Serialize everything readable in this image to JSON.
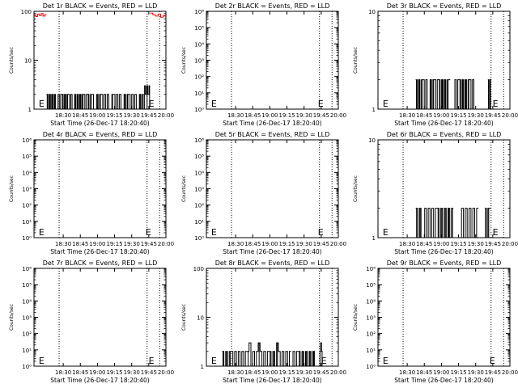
{
  "figure": {
    "type": "grid",
    "rows": 3,
    "cols": 3,
    "background": "#ffffff",
    "event_color": "#000000",
    "lld_color": "#ff0000"
  },
  "chart_data": [
    {
      "id": "p1",
      "type": "line",
      "title": "Det 1r BLACK = Events, RED = LLD",
      "xlabel": "Start Time (26-Dec-17 18:20:40)",
      "ylabel": "Counts/sec",
      "xticks": [
        "18:30",
        "18:45",
        "19:00",
        "19:15",
        "19:30",
        "19:45",
        "20:00"
      ],
      "xlim_minutes": [
        -2,
        40
      ],
      "yscale": "log",
      "ylim": [
        1,
        100
      ],
      "yticks": [
        "1",
        "10",
        "100"
      ],
      "vlines_minutes": [
        6,
        34,
        38
      ],
      "e_minutes": [
        -0.5,
        34.5
      ],
      "series": [
        {
          "name": "Events",
          "segments": [
            {
              "start_min": 2,
              "end_min": 15,
              "counts": [
                2,
                1,
                2,
                1,
                2,
                1,
                2,
                1,
                1,
                2,
                1,
                2,
                2,
                1,
                2,
                1,
                2,
                2,
                1,
                2,
                1,
                1,
                2,
                1,
                2,
                1,
                2,
                1,
                2,
                2,
                1,
                2
              ]
            },
            {
              "start_min": 15,
              "end_min": 33,
              "counts": [
                2,
                1,
                2,
                2,
                1,
                1,
                2,
                1,
                2,
                2,
                1,
                2,
                1,
                2,
                1,
                1,
                2,
                2,
                1,
                2,
                1,
                2,
                1,
                1,
                2,
                1,
                2,
                2,
                1,
                2,
                1,
                2,
                1,
                1,
                2,
                1,
                2
              ]
            },
            {
              "start_min": 33,
              "end_min": 35,
              "counts": [
                3,
                2,
                3,
                2,
                3
              ]
            }
          ]
        },
        {
          "name": "LLD",
          "segments": [
            {
              "start_min": -2,
              "end_min": 2,
              "counts": [
                85,
                78,
                88,
                82,
                90,
                80,
                86
              ]
            },
            {
              "start_min": 35,
              "end_min": 40,
              "counts": [
                92,
                85,
                80,
                88,
                76,
                82
              ]
            }
          ]
        }
      ]
    },
    {
      "id": "p2",
      "type": "line",
      "title": "Det 2r BLACK = Events, RED = LLD",
      "xlabel": "Start Time (26-Dec-17 18:20:40)",
      "ylabel": "Counts/sec",
      "xticks": [
        "18:30",
        "18:45",
        "19:00",
        "19:15",
        "19:30",
        "19:45",
        "20:00"
      ],
      "xlim_minutes": [
        -2,
        40
      ],
      "yscale": "log",
      "ylim": [
        1,
        1000000
      ],
      "yticks": [
        "10⁰",
        "10¹",
        "10²",
        "10³",
        "10⁴",
        "10⁵",
        "10⁶"
      ],
      "vlines_minutes": [
        6,
        34,
        38
      ],
      "e_minutes": [
        -0.5,
        33.5
      ],
      "series": []
    },
    {
      "id": "p3",
      "type": "line",
      "title": "Det 3r BLACK = Events, RED = LLD",
      "xlabel": "Start Time (26-Dec-17 18:20:40)",
      "ylabel": "Counts/sec",
      "xticks": [
        "18:30",
        "18:45",
        "19:00",
        "19:15",
        "19:30",
        "19:45",
        "20:00"
      ],
      "xlim_minutes": [
        -2,
        40
      ],
      "yscale": "log",
      "ylim": [
        1,
        10
      ],
      "yticks": [
        "1",
        "10"
      ],
      "vlines_minutes": [
        6,
        34,
        38
      ],
      "e_minutes": [
        -0.5,
        34.5
      ],
      "series": [
        {
          "name": "Events",
          "segments": [
            {
              "start_min": 10,
              "end_min": 21,
              "counts": [
                2,
                1,
                2,
                1,
                2,
                2,
                1,
                2,
                1,
                1,
                2,
                1,
                2,
                2,
                1,
                2,
                2,
                1,
                2,
                1,
                2,
                1,
                2,
                2
              ]
            },
            {
              "start_min": 22,
              "end_min": 29,
              "counts": [
                1,
                2,
                1,
                2,
                2,
                1,
                2,
                1,
                2,
                1,
                2,
                2,
                1,
                2,
                1
              ]
            },
            {
              "start_min": 33,
              "end_min": 34,
              "counts": [
                2,
                1,
                2
              ]
            }
          ]
        }
      ]
    },
    {
      "id": "p4",
      "type": "line",
      "title": "Det 4r BLACK = Events, RED = LLD",
      "xlabel": "Start Time (26-Dec-17 18:20:40)",
      "ylabel": "Counts/sec",
      "xticks": [
        "18:30",
        "18:45",
        "19:00",
        "19:15",
        "19:30",
        "19:45",
        "20:00"
      ],
      "xlim_minutes": [
        -2,
        40
      ],
      "yscale": "log",
      "ylim": [
        1,
        1000000
      ],
      "yticks": [
        "10⁰",
        "10¹",
        "10²",
        "10³",
        "10⁴",
        "10⁵",
        "10⁶"
      ],
      "vlines_minutes": [
        6,
        34,
        38
      ],
      "e_minutes": [
        -0.5,
        33.5
      ],
      "series": []
    },
    {
      "id": "p5",
      "type": "line",
      "title": "Det 5r BLACK = Events, RED = LLD",
      "xlabel": "Start Time (26-Dec-17 18:20:40)",
      "ylabel": "Counts/sec",
      "xticks": [
        "18:30",
        "18:45",
        "19:00",
        "19:15",
        "19:30",
        "19:45",
        "20:00"
      ],
      "xlim_minutes": [
        -2,
        40
      ],
      "yscale": "log",
      "ylim": [
        1,
        1000000
      ],
      "yticks": [
        "10⁰",
        "10¹",
        "10²",
        "10³",
        "10⁴",
        "10⁵",
        "10⁶"
      ],
      "vlines_minutes": [
        6,
        34,
        38
      ],
      "e_minutes": [
        -0.5,
        33.5
      ],
      "series": []
    },
    {
      "id": "p6",
      "type": "line",
      "title": "Det 6r BLACK = Events, RED = LLD",
      "xlabel": "Start Time (26-Dec-17 18:20:40)",
      "ylabel": "Counts/sec",
      "xticks": [
        "18:30",
        "18:45",
        "19:00",
        "19:15",
        "19:30",
        "19:45",
        "20:00"
      ],
      "xlim_minutes": [
        -2,
        40
      ],
      "yscale": "log",
      "ylim": [
        1,
        10
      ],
      "yticks": [
        "1",
        "10"
      ],
      "vlines_minutes": [
        6,
        34,
        38
      ],
      "e_minutes": [
        -0.5,
        34.5
      ],
      "series": [
        {
          "name": "Events",
          "segments": [
            {
              "start_min": 10,
              "end_min": 22,
              "counts": [
                2,
                1,
                2,
                1,
                1,
                2,
                1,
                2,
                1,
                2,
                1,
                2,
                2,
                1,
                2,
                1,
                2,
                1,
                2,
                1,
                2
              ]
            },
            {
              "start_min": 24,
              "end_min": 30,
              "counts": [
                1,
                2,
                1,
                2,
                1,
                2,
                1,
                2,
                1,
                2
              ]
            },
            {
              "start_min": 32,
              "end_min": 34,
              "counts": [
                2,
                1,
                2,
                2
              ]
            }
          ]
        }
      ]
    },
    {
      "id": "p7",
      "type": "line",
      "title": "Det 7r BLACK = Events, RED = LLD",
      "xlabel": "Start Time (26-Dec-17 18:20:40)",
      "ylabel": "Counts/sec",
      "xticks": [
        "18:30",
        "18:45",
        "19:00",
        "19:15",
        "19:30",
        "19:45",
        "20:00"
      ],
      "xlim_minutes": [
        -2,
        40
      ],
      "yscale": "log",
      "ylim": [
        1,
        1000000
      ],
      "yticks": [
        "10⁰",
        "10¹",
        "10²",
        "10³",
        "10⁴",
        "10⁵",
        "10⁶"
      ],
      "vlines_minutes": [
        6,
        34,
        38
      ],
      "e_minutes": [
        -0.5,
        34.5
      ],
      "series": []
    },
    {
      "id": "p8",
      "type": "line",
      "title": "Det 8r BLACK = Events, RED = LLD",
      "xlabel": "Start Time (26-Dec-17 18:20:40)",
      "ylabel": "Counts/sec",
      "xticks": [
        "18:30",
        "18:45",
        "19:00",
        "19:15",
        "19:30",
        "19:45",
        "20:00"
      ],
      "xlim_minutes": [
        -2,
        40
      ],
      "yscale": "log",
      "ylim": [
        1,
        100
      ],
      "yticks": [
        "1",
        "10",
        "100"
      ],
      "vlines_minutes": [
        6,
        34,
        38
      ],
      "e_minutes": [
        -0.5,
        34.5
      ],
      "series": [
        {
          "name": "Events",
          "segments": [
            {
              "start_min": 3,
              "end_min": 11,
              "counts": [
                2,
                1,
                2,
                1,
                2,
                2,
                1,
                2,
                1,
                2,
                1,
                2,
                1,
                2
              ]
            },
            {
              "start_min": 11,
              "end_min": 25,
              "counts": [
                2,
                3,
                1,
                2,
                1,
                2,
                3,
                2,
                1,
                2,
                1,
                2,
                2,
                1,
                2,
                1,
                3,
                2,
                1,
                2,
                1,
                2,
                1,
                2
              ]
            },
            {
              "start_min": 25,
              "end_min": 33,
              "counts": [
                1,
                2,
                1,
                2,
                2,
                1,
                2,
                1,
                2,
                1,
                2,
                1,
                2,
                1
              ]
            },
            {
              "start_min": 34,
              "end_min": 35,
              "counts": [
                2,
                3,
                2
              ]
            }
          ]
        }
      ]
    },
    {
      "id": "p9",
      "type": "line",
      "title": "Det 9r BLACK = Events, RED = LLD",
      "xlabel": "Start Time (26-Dec-17 18:20:40)",
      "ylabel": "Counts/sec",
      "xticks": [
        "18:30",
        "18:45",
        "19:00",
        "19:15",
        "19:30",
        "19:45",
        "20:00"
      ],
      "xlim_minutes": [
        -2,
        40
      ],
      "yscale": "log",
      "ylim": [
        1,
        1000000
      ],
      "yticks": [
        "10⁰",
        "10¹",
        "10²",
        "10³",
        "10⁴",
        "10⁵",
        "10⁶"
      ],
      "vlines_minutes": [
        6,
        34,
        38
      ],
      "e_minutes": [
        -0.5,
        33.5
      ],
      "series": []
    }
  ]
}
